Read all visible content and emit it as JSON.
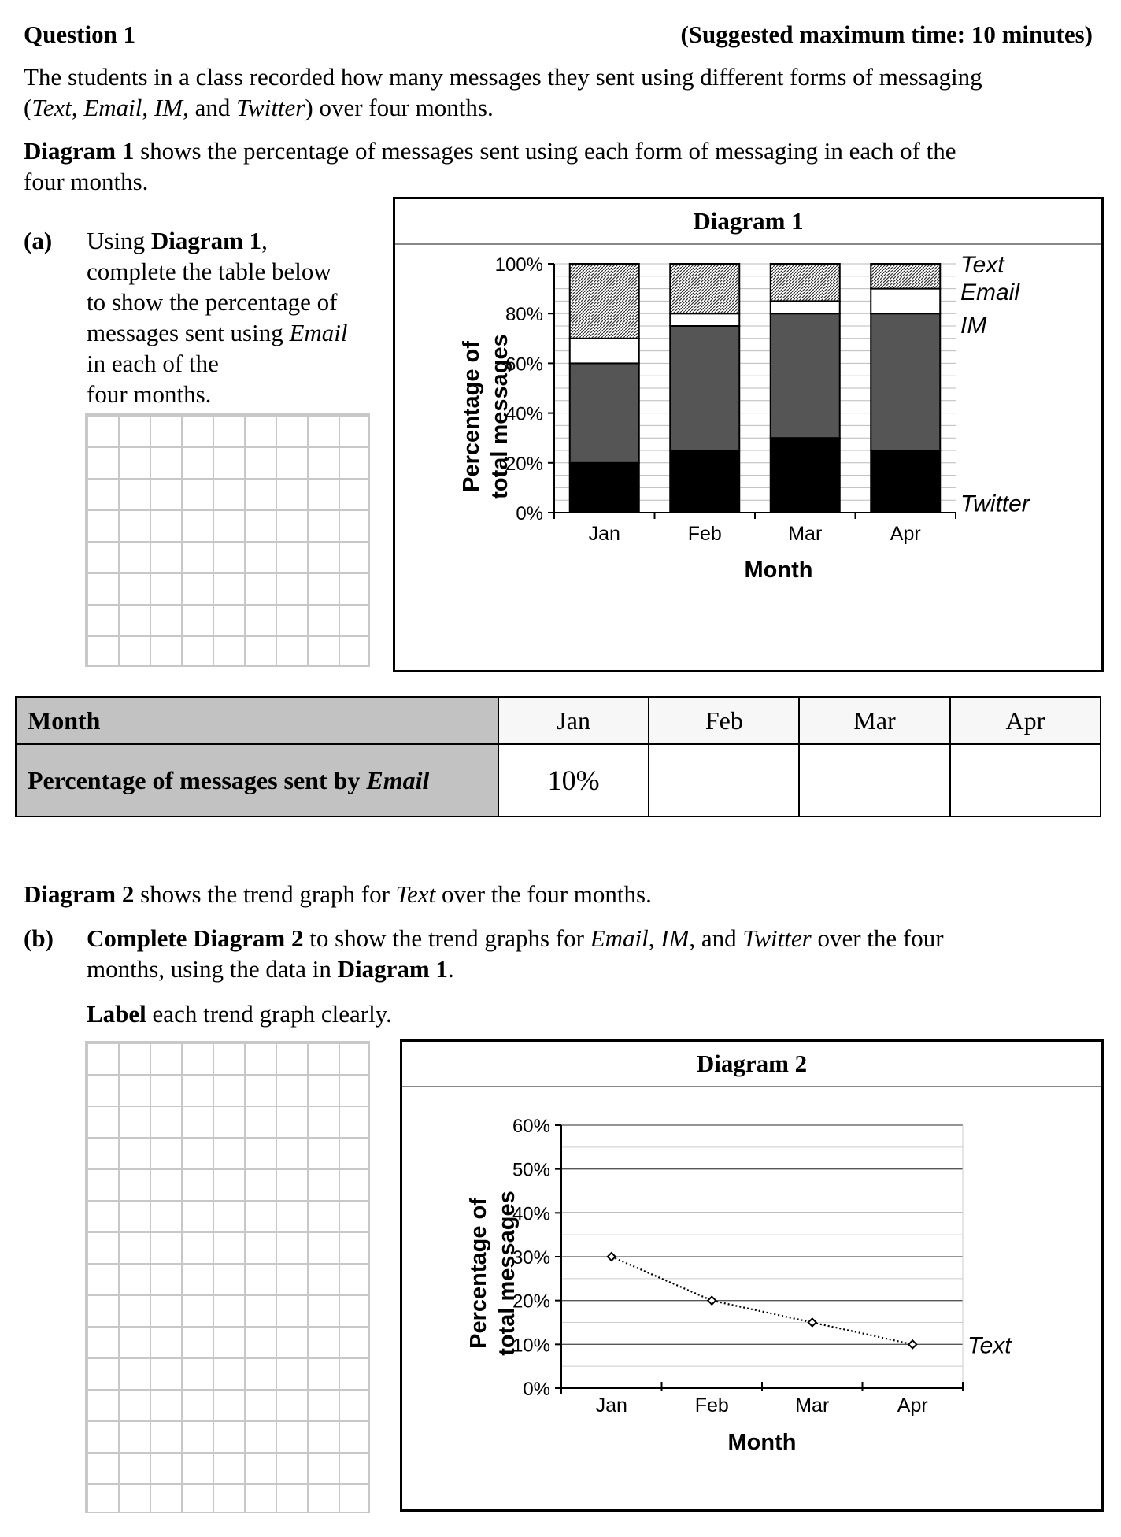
{
  "header": {
    "question_label": "Question 1",
    "time_note": "(Suggested maximum time: 10 minutes)"
  },
  "intro": {
    "line1": "The students in a class recorded how many messages they sent using different forms of messaging",
    "open_paren": "(",
    "text": "Text",
    "sep1": ", ",
    "email": "Email",
    "sep2": ", ",
    "im": "IM",
    "sep3": ", and ",
    "twitter": "Twitter",
    "rest": ") over four months."
  },
  "diagram1_desc": {
    "bold": "Diagram 1",
    "line1": " shows the percentage of messages sent using each form of messaging in each of the",
    "line2": "four months."
  },
  "part_a": {
    "label": "(a)",
    "line1_pre": "Using ",
    "line1_bold": "Diagram 1",
    "line1_post": ",",
    "line2": "complete the table below",
    "line3": "to show the percentage of",
    "line4_pre": "messages sent using ",
    "line4_italic": "Email",
    "line5": "in each of the",
    "line6": "four months."
  },
  "diagram1": {
    "title": "Diagram 1"
  },
  "table": {
    "row1_header": "Month",
    "months": [
      "Jan",
      "Feb",
      "Mar",
      "Apr"
    ],
    "row2_header_pre": "Percentage of messages sent by ",
    "row2_header_italic": "Email",
    "values": [
      "10%",
      "",
      "",
      ""
    ]
  },
  "diagram2_desc": {
    "bold": "Diagram 2",
    "pre": " shows the trend graph for ",
    "italic": "Text",
    "post": " over the four months."
  },
  "part_b": {
    "label": "(b)",
    "l1_bold": "Complete Diagram 2",
    "l1_pre": " to show the trend graphs for ",
    "l1_email": "Email",
    "l1_sep1": ", ",
    "l1_im": "IM",
    "l1_sep2": ", and ",
    "l1_twitter": "Twitter",
    "l1_post": " over the four",
    "l2_pre": "months, using the data in ",
    "l2_bold": "Diagram 1",
    "l2_post": ".",
    "l3_bold": "Label",
    "l3_post": " each trend graph clearly."
  },
  "diagram2": {
    "title": "Diagram 2"
  },
  "chart_data": [
    {
      "type": "bar",
      "stacked": true,
      "title": "Diagram 1",
      "xlabel": "Month",
      "ylabel": "Percentage of total messages",
      "ylim": [
        0,
        100
      ],
      "yticks": [
        "0%",
        "20%",
        "40%",
        "60%",
        "80%",
        "100%"
      ],
      "categories": [
        "Jan",
        "Feb",
        "Mar",
        "Apr"
      ],
      "series": [
        {
          "name": "Twitter",
          "values": [
            20,
            25,
            30,
            25
          ],
          "color": "#000000"
        },
        {
          "name": "IM",
          "values": [
            40,
            50,
            50,
            55
          ],
          "color": "#555555"
        },
        {
          "name": "Email",
          "values": [
            10,
            5,
            5,
            10
          ],
          "color": "#ffffff"
        },
        {
          "name": "Text",
          "values": [
            30,
            20,
            15,
            10
          ],
          "color": "hatched"
        }
      ],
      "legend": "right"
    },
    {
      "type": "line",
      "title": "Diagram 2",
      "xlabel": "Month",
      "ylabel": "Percentage of total messages",
      "ylim": [
        0,
        60
      ],
      "yticks": [
        "0%",
        "10%",
        "20%",
        "30%",
        "40%",
        "50%",
        "60%"
      ],
      "categories": [
        "Jan",
        "Feb",
        "Mar",
        "Apr"
      ],
      "series": [
        {
          "name": "Text",
          "values": [
            30,
            20,
            15,
            10
          ],
          "style": "dotted"
        }
      ],
      "grid": true,
      "legend": "right"
    }
  ]
}
